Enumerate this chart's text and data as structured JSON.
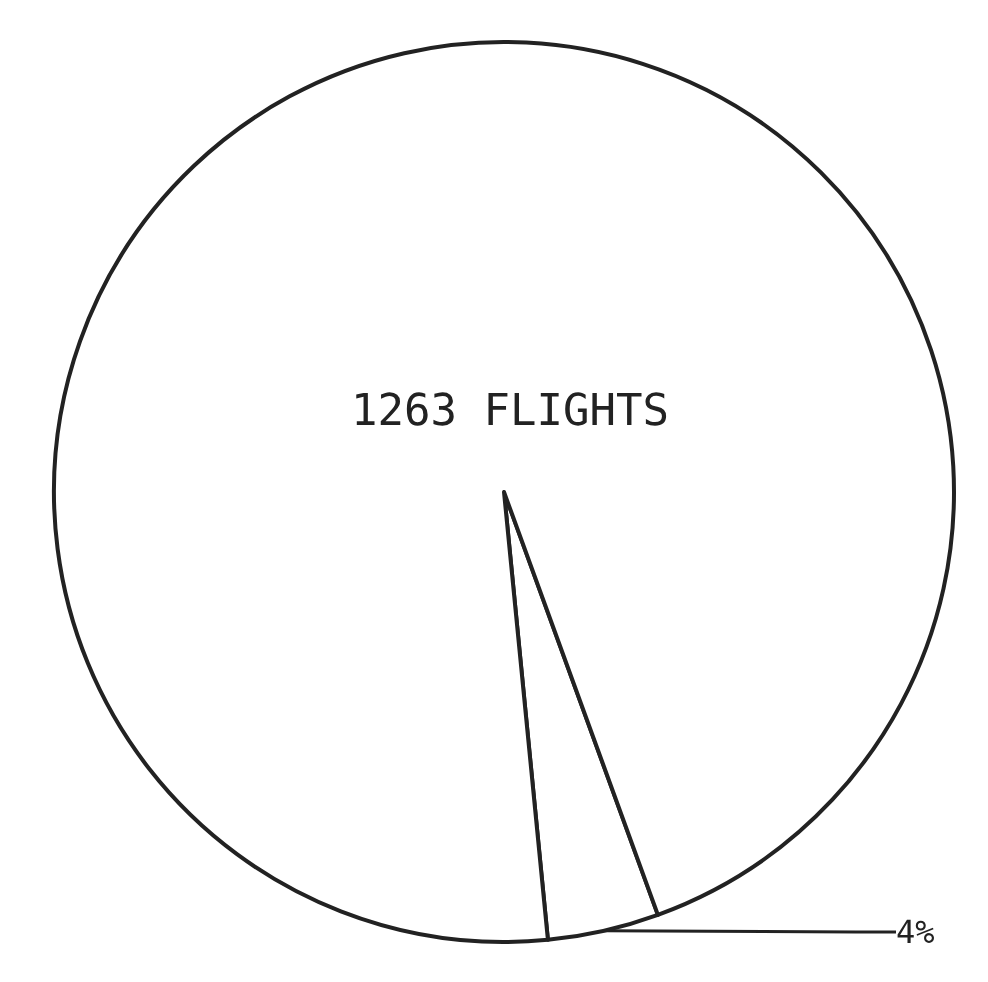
{
  "chart_data": {
    "type": "pie",
    "title": "1263 FLIGHTS",
    "categories": [
      null,
      null
    ],
    "values": [
      4,
      96
    ],
    "colors": [
      "#ffffff",
      "#ffffff"
    ],
    "value_labels": [
      "4%",
      null
    ]
  }
}
